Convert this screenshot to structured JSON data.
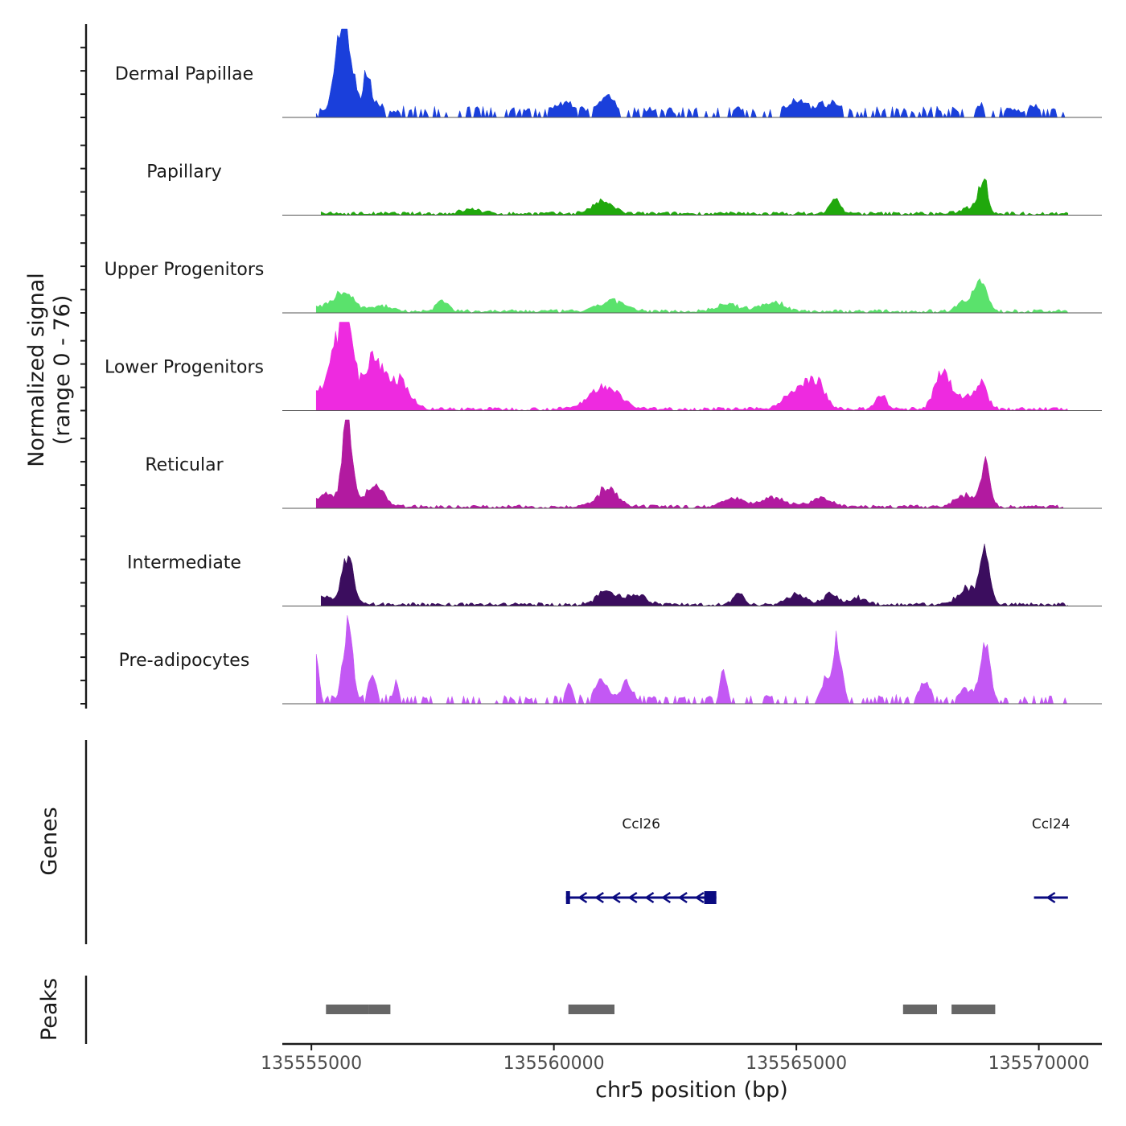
{
  "chart_data": {
    "type": "area",
    "subtype": "genome-coverage-track",
    "chromosome": "chr5",
    "xlabel": "chr5 position (bp)",
    "xlim": [
      135554400,
      135571300
    ],
    "x_ticks": [
      135555000,
      135560000,
      135565000,
      135570000
    ],
    "x_tick_labels": [
      "135555000",
      "135560000",
      "135565000",
      "135570000"
    ],
    "coverage_ylabel_line1": "Normalized signal",
    "coverage_ylabel_line2": "(range 0 - 76)",
    "ylim": [
      0,
      76
    ],
    "tracks": [
      {
        "name": "Dermal Papillae",
        "color": "#1a3fdb",
        "peaks": [
          [
            135555700,
            62,
            160
          ],
          [
            135555580,
            32,
            120
          ],
          [
            135556150,
            40,
            70
          ],
          [
            135556400,
            10,
            110
          ],
          [
            135560200,
            12,
            200
          ],
          [
            135561100,
            17,
            180
          ],
          [
            135565000,
            12,
            250
          ],
          [
            135565700,
            10,
            250
          ],
          [
            135568800,
            9,
            110
          ],
          [
            135569900,
            7,
            180
          ]
        ],
        "noise": 4,
        "start": 135555100,
        "end": 135570600,
        "sparse": true
      },
      {
        "name": "Papillary",
        "color": "#20a80c",
        "peaks": [
          [
            135561000,
            10,
            220
          ],
          [
            135565800,
            13,
            100
          ],
          [
            135568850,
            28,
            90
          ],
          [
            135568650,
            6,
            200
          ],
          [
            135558300,
            4,
            200
          ]
        ],
        "noise": 3,
        "start": 135555200,
        "end": 135570600,
        "sparse": false
      },
      {
        "name": "Upper Progenitors",
        "color": "#5ae26c",
        "peaks": [
          [
            135555700,
            15,
            150
          ],
          [
            135555400,
            6,
            250
          ],
          [
            135556400,
            5,
            250
          ],
          [
            135557700,
            11,
            110
          ],
          [
            135561200,
            9,
            250
          ],
          [
            135563600,
            6,
            250
          ],
          [
            135564500,
            8,
            250
          ],
          [
            135568800,
            26,
            130
          ],
          [
            135568450,
            8,
            150
          ]
        ],
        "noise": 3,
        "start": 135555100,
        "end": 135570600,
        "sparse": false
      },
      {
        "name": "Lower Progenitors",
        "color": "#ee2ae0",
        "peaks": [
          [
            135555720,
            85,
            130
          ],
          [
            135555500,
            35,
            200
          ],
          [
            135556300,
            42,
            230
          ],
          [
            135556850,
            22,
            200
          ],
          [
            135561050,
            20,
            300
          ],
          [
            135565400,
            22,
            180
          ],
          [
            135565000,
            15,
            250
          ],
          [
            135566750,
            12,
            100
          ],
          [
            135568000,
            32,
            150
          ],
          [
            135568800,
            22,
            130
          ],
          [
            135568400,
            10,
            200
          ],
          [
            135555000,
            12,
            250
          ]
        ],
        "noise": 3,
        "start": 135555100,
        "end": 135570600,
        "sparse": false
      },
      {
        "name": "Reticular",
        "color": "#b21aa0",
        "peaks": [
          [
            135555750,
            80,
            100
          ],
          [
            135556300,
            18,
            200
          ],
          [
            135555300,
            10,
            200
          ],
          [
            135561100,
            16,
            200
          ],
          [
            135568900,
            40,
            90
          ],
          [
            135568500,
            10,
            200
          ],
          [
            135563700,
            8,
            200
          ],
          [
            135564500,
            9,
            250
          ],
          [
            135565500,
            8,
            200
          ]
        ],
        "noise": 3,
        "start": 135555100,
        "end": 135570500,
        "sparse": false
      },
      {
        "name": "Intermediate",
        "color": "#3b0d5e",
        "peaks": [
          [
            135555750,
            45,
            110
          ],
          [
            135555300,
            8,
            150
          ],
          [
            135561100,
            12,
            200
          ],
          [
            135561700,
            8,
            200
          ],
          [
            135563800,
            10,
            100
          ],
          [
            135565000,
            8,
            200
          ],
          [
            135565700,
            9,
            150
          ],
          [
            135566300,
            6,
            150
          ],
          [
            135568900,
            40,
            100
          ],
          [
            135568550,
            15,
            200
          ]
        ],
        "noise": 3,
        "start": 135555200,
        "end": 135570600,
        "sparse": false
      },
      {
        "name": "Pre-adipocytes",
        "color": "#c358f4",
        "peaks": [
          [
            135555100,
            45,
            60
          ],
          [
            135555750,
            70,
            100
          ],
          [
            135556250,
            25,
            80
          ],
          [
            135556750,
            18,
            60
          ],
          [
            135560300,
            18,
            80
          ],
          [
            135561000,
            20,
            150
          ],
          [
            135561500,
            18,
            120
          ],
          [
            135563500,
            28,
            70
          ],
          [
            135565850,
            52,
            90
          ],
          [
            135565600,
            20,
            100
          ],
          [
            135567650,
            18,
            120
          ],
          [
            135568900,
            55,
            100
          ],
          [
            135568500,
            12,
            150
          ]
        ],
        "noise": 2,
        "start": 135555100,
        "end": 135570600,
        "sparse": true
      }
    ],
    "genes_label": "Genes",
    "genes": [
      {
        "name": "Ccl26",
        "start": 135560250,
        "end": 135563350,
        "strand": "-",
        "exons": [
          [
            135560250,
            135560320
          ],
          [
            135563100,
            135563350
          ]
        ]
      },
      {
        "name": "Ccl24",
        "start": 135569900,
        "end": 135570600,
        "strand": "-",
        "exons": []
      }
    ],
    "peaks_label": "Peaks",
    "peak_regions": [
      [
        135555300,
        135556180
      ],
      [
        135556180,
        135556630
      ],
      [
        135560300,
        135561250
      ],
      [
        135567200,
        135567900
      ],
      [
        135568200,
        135569100
      ]
    ]
  }
}
